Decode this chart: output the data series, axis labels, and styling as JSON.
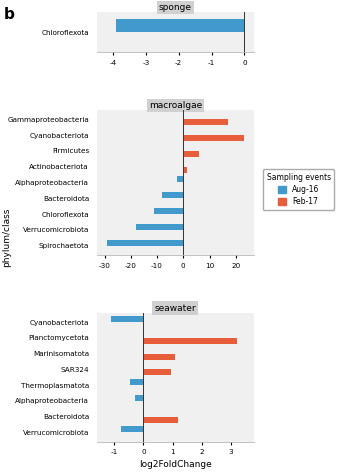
{
  "sponge": {
    "title": "sponge",
    "categories": [
      "Chloroflexota"
    ],
    "aug16": [
      -3.9
    ],
    "feb17": [
      0
    ],
    "xlim": [
      -4.5,
      0.3
    ],
    "xticks": [
      -4,
      -3,
      -2,
      -1,
      0
    ]
  },
  "macroalgae": {
    "title": "macroalgae",
    "categories": [
      "Gammaproteobacteria",
      "Cyanobacteriota",
      "Firmicutes",
      "Actinobacteriota",
      "Alphaproteobacteria",
      "Bacteroidota",
      "Chloroflexota",
      "Verrucomicrobiota",
      "Spirochaetota"
    ],
    "aug16": [
      0,
      0,
      0,
      0,
      -2.5,
      -8.0,
      -11.0,
      -18.0,
      -29.0
    ],
    "feb17": [
      17.0,
      23.0,
      6.0,
      1.5,
      0,
      0,
      0,
      0,
      0
    ],
    "xlim": [
      -33,
      27
    ],
    "xticks": [
      -30,
      -20,
      -10,
      0,
      10,
      20
    ]
  },
  "seawater": {
    "title": "seawater",
    "categories": [
      "Cyanobacteriota",
      "Planctomycetota",
      "Marinisomatota",
      "SAR324",
      "Thermoplasmatota",
      "Alphaproteobacteria",
      "Bacteroidota",
      "Verrucomicrobiota"
    ],
    "aug16": [
      -1.1,
      0,
      0,
      0,
      -0.45,
      -0.3,
      0,
      -0.75
    ],
    "feb17": [
      0,
      3.2,
      1.1,
      0.95,
      0,
      0,
      1.2,
      0
    ],
    "xlim": [
      -1.6,
      3.8
    ],
    "xticks": [
      -1,
      0,
      1,
      2,
      3
    ]
  },
  "color_aug": "#4199cc",
  "color_feb": "#e85d3a",
  "bar_height": 0.38,
  "bg_color": "#d0d0d0",
  "panel_bg": "#f0f0f0",
  "xlabel": "log2FoldChange",
  "ylabel": "phylum/class",
  "legend_title": "Sampling events",
  "legend_aug": "Aug-16",
  "legend_feb": "Feb-17"
}
